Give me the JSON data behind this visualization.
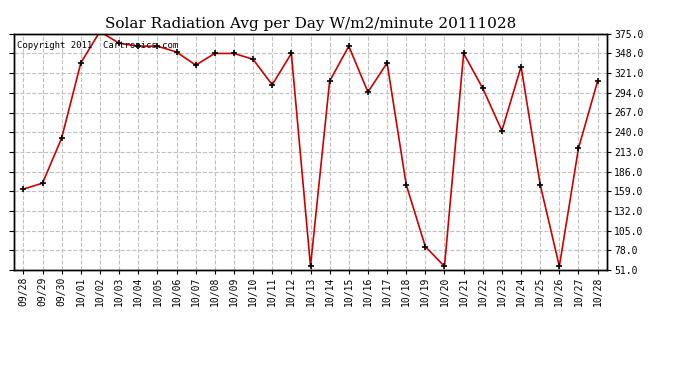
{
  "title": "Solar Radiation Avg per Day W/m2/minute 20111028",
  "copyright_text": "Copyright 2011  Cartronics.com",
  "labels": [
    "09/28",
    "09/29",
    "09/30",
    "10/01",
    "10/02",
    "10/03",
    "10/04",
    "10/05",
    "10/06",
    "10/07",
    "10/08",
    "10/09",
    "10/10",
    "10/11",
    "10/12",
    "10/13",
    "10/14",
    "10/15",
    "10/16",
    "10/17",
    "10/18",
    "10/19",
    "10/20",
    "10/21",
    "10/22",
    "10/23",
    "10/24",
    "10/25",
    "10/26",
    "10/27",
    "10/28"
  ],
  "values": [
    162,
    170,
    232,
    335,
    378,
    362,
    358,
    358,
    350,
    332,
    348,
    348,
    340,
    305,
    348,
    56,
    310,
    358,
    295,
    335,
    168,
    83,
    56,
    348,
    300,
    242,
    330,
    168,
    56,
    218,
    310
  ],
  "line_color": "#cc0000",
  "marker_color": "#000000",
  "bg_color": "#ffffff",
  "grid_color": "#c0c0c0",
  "grid_style": "--",
  "ylim": [
    51.0,
    375.0
  ],
  "yticks": [
    51.0,
    78.0,
    105.0,
    132.0,
    159.0,
    186.0,
    213.0,
    240.0,
    267.0,
    294.0,
    321.0,
    348.0,
    375.0
  ],
  "title_fontsize": 11,
  "tick_fontsize": 7,
  "copyright_fontsize": 6.5
}
